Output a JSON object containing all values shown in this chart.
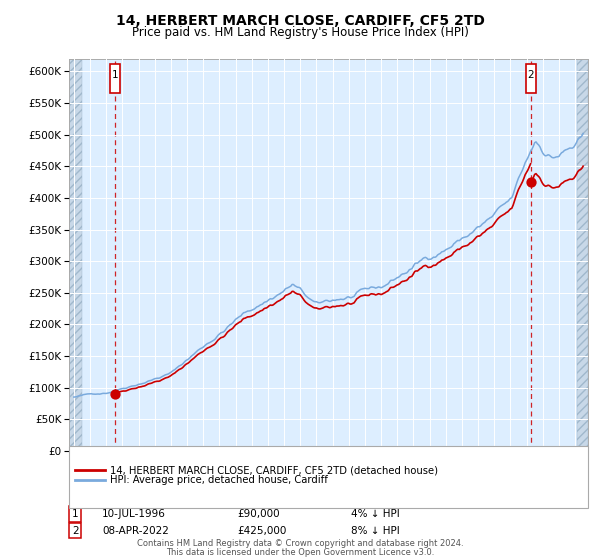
{
  "title": "14, HERBERT MARCH CLOSE, CARDIFF, CF5 2TD",
  "subtitle": "Price paid vs. HM Land Registry's House Price Index (HPI)",
  "legend_line1": "14, HERBERT MARCH CLOSE, CARDIFF, CF5 2TD (detached house)",
  "legend_line2": "HPI: Average price, detached house, Cardiff",
  "annotation1_date": "10-JUL-1996",
  "annotation1_price": 90000,
  "annotation1_year": 1996.53,
  "annotation2_date": "08-APR-2022",
  "annotation2_price": 425000,
  "annotation2_year": 2022.27,
  "footer1": "Contains HM Land Registry data © Crown copyright and database right 2024.",
  "footer2": "This data is licensed under the Open Government Licence v3.0.",
  "ylim_max": 620000,
  "xlim_start": 1993.7,
  "xlim_end": 2025.8,
  "hpi_color": "#7aaadd",
  "price_color": "#cc0000",
  "vline_color": "#cc0000",
  "bg_color": "#ddeeff",
  "hatch_color": "#bbccee",
  "grid_color": "#ffffff"
}
